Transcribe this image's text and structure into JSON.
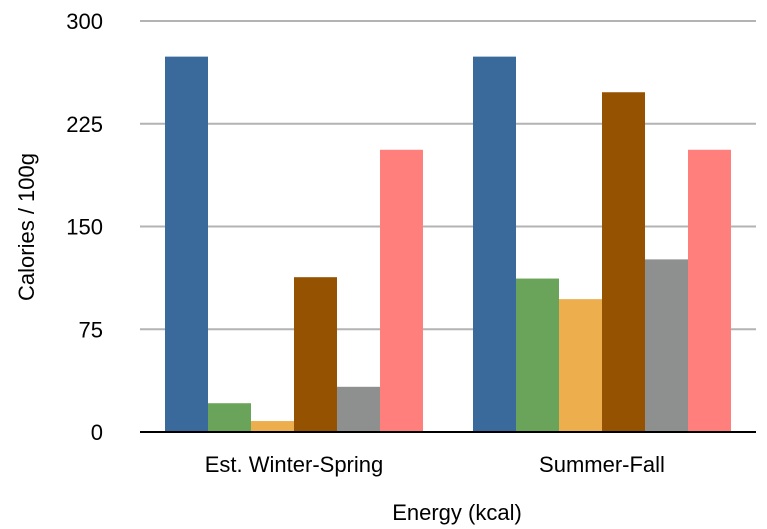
{
  "chart_data": {
    "type": "bar",
    "title": "",
    "xlabel": "Energy (kcal)",
    "ylabel": "Calories / 100g",
    "ylim": [
      0,
      300
    ],
    "yticks": [
      0,
      75,
      150,
      225,
      300
    ],
    "grid": true,
    "legend": "none",
    "categories": [
      "Est. Winter-Spring",
      "Summer-Fall"
    ],
    "series": [
      {
        "color": "#3a6a9c",
        "values": [
          274,
          274
        ]
      },
      {
        "color": "#6aa35a",
        "values": [
          21,
          112
        ]
      },
      {
        "color": "#edaf4e",
        "values": [
          8,
          97
        ]
      },
      {
        "color": "#955200",
        "values": [
          113,
          248
        ]
      },
      {
        "color": "#8e908f",
        "values": [
          33,
          126
        ]
      },
      {
        "color": "#ff7f7d",
        "values": [
          206,
          206
        ]
      }
    ]
  }
}
